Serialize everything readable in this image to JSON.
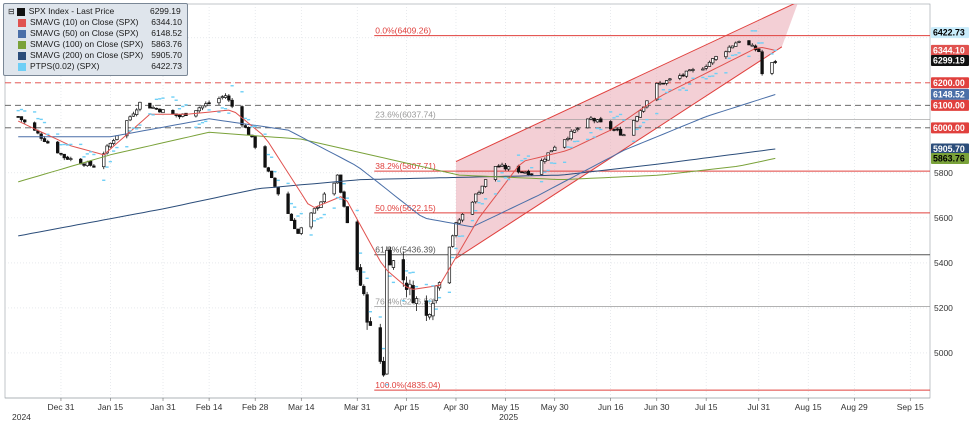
{
  "chart_data": {
    "type": "candlestick",
    "title": "",
    "xlabel": "",
    "ylabel": "",
    "ylim": [
      4800,
      6550
    ],
    "grid": true,
    "legend_position": "top-left",
    "x_ticks": [
      {
        "label": "Dec 31",
        "date": "2024-12-31"
      },
      {
        "label": "Jan 15",
        "date": "2025-01-15"
      },
      {
        "label": "Jan 31",
        "date": "2025-01-31"
      },
      {
        "label": "Feb 14",
        "date": "2025-02-14"
      },
      {
        "label": "Feb 28",
        "date": "2025-02-28"
      },
      {
        "label": "Mar 14",
        "date": "2025-03-14"
      },
      {
        "label": "Mar 31",
        "date": "2025-03-31"
      },
      {
        "label": "Apr 15",
        "date": "2025-04-15"
      },
      {
        "label": "Apr 30",
        "date": "2025-04-30"
      },
      {
        "label": "May 15",
        "date": "2025-05-15"
      },
      {
        "label": "May 30",
        "date": "2025-05-30"
      },
      {
        "label": "Jun 16",
        "date": "2025-06-16"
      },
      {
        "label": "Jun 30",
        "date": "2025-06-30"
      },
      {
        "label": "Jul 15",
        "date": "2025-07-15"
      },
      {
        "label": "Jul 31",
        "date": "2025-07-31"
      },
      {
        "label": "Aug 15",
        "date": "2025-08-15"
      },
      {
        "label": "Aug 29",
        "date": "2025-08-29"
      },
      {
        "label": "Sep 15",
        "date": "2025-09-15"
      }
    ],
    "year_labels": [
      {
        "label": "2024",
        "date": "2024-12-19"
      },
      {
        "label": "2025",
        "date": "2025-05-16"
      }
    ],
    "y_ticks": [
      5000,
      5200,
      5400,
      5600,
      5800,
      6000,
      6200,
      6400
    ],
    "legend": [
      {
        "label": "SPX Index - Last Price",
        "value": "6299.19",
        "color": "#111111"
      },
      {
        "label": "SMAVG (10)  on Close (SPX)",
        "value": "6344.10",
        "color": "#e0524f"
      },
      {
        "label": "SMAVG (50)  on Close (SPX)",
        "value": "6148.52",
        "color": "#4a6fa8"
      },
      {
        "label": "SMAVG (100)  on Close (SPX)",
        "value": "5863.76",
        "color": "#7aa23a"
      },
      {
        "label": "SMAVG (200)  on Close (SPX)",
        "value": "5905.70",
        "color": "#2b4d7a"
      },
      {
        "label": "PTPS(0.02) (SPX)",
        "value": "6422.73",
        "color": "#6ecff6"
      }
    ],
    "fibonacci": [
      {
        "label": "0.0%(6409.26)",
        "level": 6409.26,
        "color": "#e0403d"
      },
      {
        "label": "23.6%(6037.74)",
        "level": 6037.74,
        "color": "#999999"
      },
      {
        "label": "38.2%(5807.71)",
        "level": 5807.71,
        "color": "#e0403d"
      },
      {
        "label": "50.0%(5622.15)",
        "level": 5622.15,
        "color": "#e0403d"
      },
      {
        "label": "61.8%(5436.39)",
        "level": 5436.39,
        "color": "#555555"
      },
      {
        "label": "76.4%(5206.56)",
        "level": 5206.56,
        "color": "#999999"
      },
      {
        "label": "100.0%(4835.04)",
        "level": 4835.04,
        "color": "#e0403d"
      }
    ],
    "horizontal_levels": [
      {
        "label": "6200.00",
        "level": 6200,
        "style": "dashed",
        "color": "#e0403d"
      },
      {
        "label": "6100.00",
        "level": 6100,
        "style": "dashed",
        "color": "#555555"
      },
      {
        "label": "6000.00",
        "level": 6000,
        "style": "dashed",
        "color": "#555555"
      }
    ],
    "price_tags": [
      {
        "label": "6422.73",
        "level": 6422.73,
        "bg": "#c9ecfb",
        "fg": "#000000"
      },
      {
        "label": "6344.10",
        "level": 6344.1,
        "bg": "#e0524f",
        "fg": "#ffffff"
      },
      {
        "label": "6299.19",
        "level": 6299.19,
        "bg": "#111111",
        "fg": "#ffffff"
      },
      {
        "label": "6200.00",
        "level": 6200,
        "bg": "#e0403d",
        "fg": "#ffffff"
      },
      {
        "label": "6148.52",
        "level": 6148.52,
        "bg": "#4a6fa8",
        "fg": "#ffffff"
      },
      {
        "label": "6100.00",
        "level": 6100,
        "bg": "#e0403d",
        "fg": "#ffffff"
      },
      {
        "label": "6000.00",
        "level": 6000,
        "bg": "#e0403d",
        "fg": "#ffffff"
      },
      {
        "label": "5905.70",
        "level": 5905.7,
        "bg": "#2b4d7a",
        "fg": "#ffffff"
      },
      {
        "label": "5863.76",
        "level": 5863.76,
        "bg": "#7aa23a",
        "fg": "#000000"
      }
    ],
    "channel": {
      "color": "#e0403d",
      "fill": "#e9a7b3",
      "upper": [
        {
          "date": "2025-04-30",
          "value": 5850
        },
        {
          "date": "2025-08-12",
          "value": 6560
        }
      ],
      "lower": [
        {
          "date": "2025-04-30",
          "value": 5420
        },
        {
          "date": "2025-08-07",
          "value": 6360
        }
      ]
    },
    "anchors": [
      {
        "date": "2024-12-18",
        "value": 6050
      },
      {
        "date": "2025-01-01",
        "value": 5870
      },
      {
        "date": "2025-01-10",
        "value": 5830
      },
      {
        "date": "2025-01-24",
        "value": 6110
      },
      {
        "date": "2025-02-05",
        "value": 6050
      },
      {
        "date": "2025-02-19",
        "value": 6144
      },
      {
        "date": "2025-02-27",
        "value": 5950
      },
      {
        "date": "2025-03-10",
        "value": 5620
      },
      {
        "date": "2025-03-13",
        "value": 5530
      },
      {
        "date": "2025-03-25",
        "value": 5780
      },
      {
        "date": "2025-04-04",
        "value": 5100
      },
      {
        "date": "2025-04-08",
        "value": 4920
      },
      {
        "date": "2025-04-09",
        "value": 5450
      },
      {
        "date": "2025-04-21",
        "value": 5160
      },
      {
        "date": "2025-04-30",
        "value": 5570
      },
      {
        "date": "2025-05-12",
        "value": 5830
      },
      {
        "date": "2025-05-23",
        "value": 5800
      },
      {
        "date": "2025-05-30",
        "value": 5920
      },
      {
        "date": "2025-06-10",
        "value": 6040
      },
      {
        "date": "2025-06-20",
        "value": 5970
      },
      {
        "date": "2025-06-30",
        "value": 6190
      },
      {
        "date": "2025-07-14",
        "value": 6270
      },
      {
        "date": "2025-07-25",
        "value": 6390
      },
      {
        "date": "2025-07-31",
        "value": 6340
      },
      {
        "date": "2025-08-01",
        "value": 6240
      },
      {
        "date": "2025-08-05",
        "value": 6299
      }
    ],
    "sma10_anchors": [
      {
        "date": "2024-12-18",
        "value": 6030
      },
      {
        "date": "2025-01-03",
        "value": 5920
      },
      {
        "date": "2025-01-13",
        "value": 5880
      },
      {
        "date": "2025-01-27",
        "value": 6060
      },
      {
        "date": "2025-02-07",
        "value": 6060
      },
      {
        "date": "2025-02-21",
        "value": 6080
      },
      {
        "date": "2025-03-03",
        "value": 5960
      },
      {
        "date": "2025-03-17",
        "value": 5640
      },
      {
        "date": "2025-03-27",
        "value": 5700
      },
      {
        "date": "2025-04-08",
        "value": 5380
      },
      {
        "date": "2025-04-16",
        "value": 5280
      },
      {
        "date": "2025-04-25",
        "value": 5300
      },
      {
        "date": "2025-05-07",
        "value": 5600
      },
      {
        "date": "2025-05-20",
        "value": 5850
      },
      {
        "date": "2025-06-03",
        "value": 5900
      },
      {
        "date": "2025-06-16",
        "value": 5990
      },
      {
        "date": "2025-07-01",
        "value": 6140
      },
      {
        "date": "2025-07-16",
        "value": 6250
      },
      {
        "date": "2025-07-31",
        "value": 6360
      },
      {
        "date": "2025-08-05",
        "value": 6344
      }
    ],
    "sma50_anchors": [
      {
        "date": "2024-12-18",
        "value": 5960
      },
      {
        "date": "2025-01-15",
        "value": 5960
      },
      {
        "date": "2025-02-14",
        "value": 6040
      },
      {
        "date": "2025-03-10",
        "value": 5990
      },
      {
        "date": "2025-03-31",
        "value": 5830
      },
      {
        "date": "2025-04-20",
        "value": 5600
      },
      {
        "date": "2025-05-05",
        "value": 5560
      },
      {
        "date": "2025-05-25",
        "value": 5700
      },
      {
        "date": "2025-06-20",
        "value": 5900
      },
      {
        "date": "2025-07-15",
        "value": 6050
      },
      {
        "date": "2025-08-05",
        "value": 6148
      }
    ],
    "sma100_anchors": [
      {
        "date": "2024-12-18",
        "value": 5760
      },
      {
        "date": "2025-01-15",
        "value": 5880
      },
      {
        "date": "2025-02-14",
        "value": 5980
      },
      {
        "date": "2025-03-14",
        "value": 5950
      },
      {
        "date": "2025-04-10",
        "value": 5860
      },
      {
        "date": "2025-05-01",
        "value": 5790
      },
      {
        "date": "2025-06-01",
        "value": 5770
      },
      {
        "date": "2025-07-01",
        "value": 5790
      },
      {
        "date": "2025-07-25",
        "value": 5830
      },
      {
        "date": "2025-08-05",
        "value": 5864
      }
    ],
    "sma200_anchors": [
      {
        "date": "2024-12-18",
        "value": 5520
      },
      {
        "date": "2025-01-31",
        "value": 5640
      },
      {
        "date": "2025-03-01",
        "value": 5730
      },
      {
        "date": "2025-04-01",
        "value": 5770
      },
      {
        "date": "2025-05-01",
        "value": 5780
      },
      {
        "date": "2025-06-01",
        "value": 5790
      },
      {
        "date": "2025-07-01",
        "value": 5840
      },
      {
        "date": "2025-08-05",
        "value": 5906
      }
    ]
  }
}
